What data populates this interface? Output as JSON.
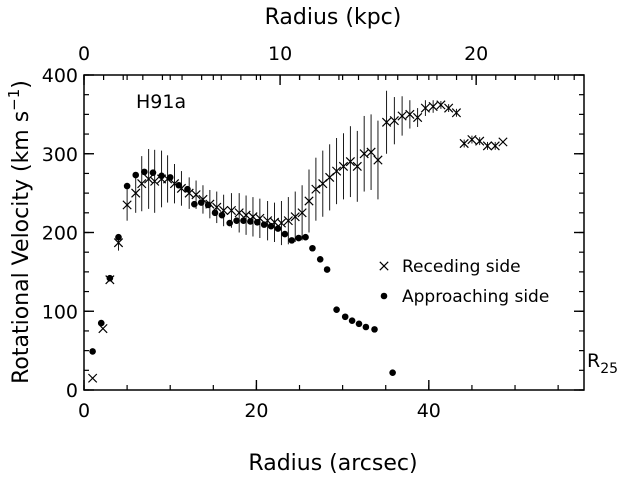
{
  "chart_data": {
    "type": "scatter",
    "xlabel": "Radius (arcsec)",
    "x2label": "Radius (kpc)",
    "ylabel": "Rotational Velocity (km s",
    "ylabel_sup": "−1",
    "ylabel_close": ")",
    "annotation": "H91a",
    "r25_label": "R",
    "r25_sub": "25",
    "xlim": [
      0,
      58
    ],
    "ylim": [
      0,
      400
    ],
    "x2lim": [
      0,
      25.5
    ],
    "x_ticks": [
      0,
      20,
      40
    ],
    "x_tick_labels": [
      "0",
      "20",
      "40"
    ],
    "x2_ticks": [
      0,
      10,
      20
    ],
    "x2_tick_labels": [
      "0",
      "10",
      "20"
    ],
    "y_ticks": [
      0,
      100,
      200,
      300,
      400
    ],
    "y_tick_labels": [
      "0",
      "100",
      "200",
      "300",
      "400"
    ],
    "x_minor_step": 5,
    "y_minor_step": 25,
    "x2_minor_step": 1,
    "series": [
      {
        "name": "Receding side",
        "marker": "x",
        "points": [
          [
            1,
            15,
            0
          ],
          [
            2.2,
            78,
            0
          ],
          [
            3,
            140,
            0
          ],
          [
            4,
            187,
            10
          ],
          [
            5,
            235,
            20
          ],
          [
            6,
            250,
            25
          ],
          [
            6.7,
            262,
            35
          ],
          [
            7.5,
            268,
            38
          ],
          [
            8.2,
            265,
            40
          ],
          [
            9,
            268,
            36
          ],
          [
            9.7,
            268,
            30
          ],
          [
            10.5,
            262,
            25
          ],
          [
            11.3,
            256,
            22
          ],
          [
            12.2,
            250,
            20
          ],
          [
            13,
            248,
            18
          ],
          [
            13.8,
            242,
            18
          ],
          [
            14.6,
            236,
            18
          ],
          [
            15.4,
            232,
            20
          ],
          [
            16.2,
            228,
            20
          ],
          [
            17.1,
            228,
            22
          ],
          [
            18,
            225,
            25
          ],
          [
            18.8,
            222,
            25
          ],
          [
            19.6,
            220,
            25
          ],
          [
            20.4,
            218,
            25
          ],
          [
            21.3,
            215,
            25
          ],
          [
            22.1,
            213,
            25
          ],
          [
            22.9,
            212,
            28
          ],
          [
            23.7,
            215,
            30
          ],
          [
            24.5,
            220,
            32
          ],
          [
            25.3,
            225,
            35
          ],
          [
            26.1,
            240,
            40
          ],
          [
            26.9,
            255,
            40
          ],
          [
            27.7,
            262,
            42
          ],
          [
            28.5,
            270,
            42
          ],
          [
            29.3,
            278,
            42
          ],
          [
            30.1,
            284,
            42
          ],
          [
            30.9,
            290,
            45
          ],
          [
            31.7,
            284,
            45
          ],
          [
            32.5,
            300,
            48
          ],
          [
            33.3,
            302,
            48
          ],
          [
            34.1,
            292,
            50
          ],
          [
            35.1,
            340,
            40
          ],
          [
            36,
            342,
            30
          ],
          [
            36.9,
            348,
            25
          ],
          [
            37.8,
            350,
            18
          ],
          [
            38.7,
            346,
            12
          ],
          [
            39.6,
            358,
            10
          ],
          [
            40.5,
            360,
            8
          ],
          [
            41.4,
            362,
            5
          ],
          [
            42.3,
            358,
            5
          ],
          [
            43.2,
            352,
            5
          ],
          [
            44.1,
            313,
            5
          ],
          [
            45,
            318,
            5
          ],
          [
            45.9,
            316,
            5
          ],
          [
            46.8,
            310,
            5
          ],
          [
            47.7,
            310,
            5
          ],
          [
            48.6,
            315,
            0
          ]
        ]
      },
      {
        "name": "Approaching side",
        "marker": "dot",
        "points": [
          [
            1,
            49
          ],
          [
            2,
            85
          ],
          [
            3,
            142
          ],
          [
            4,
            194
          ],
          [
            5,
            259
          ],
          [
            6,
            273
          ],
          [
            7,
            277
          ],
          [
            8,
            276
          ],
          [
            9,
            272
          ],
          [
            10,
            270
          ],
          [
            11,
            260
          ],
          [
            12,
            255
          ],
          [
            12.8,
            236
          ],
          [
            13.6,
            238
          ],
          [
            14.4,
            235
          ],
          [
            15.2,
            225
          ],
          [
            16,
            222
          ],
          [
            16.9,
            212
          ],
          [
            17.7,
            215
          ],
          [
            18.5,
            215
          ],
          [
            19.3,
            214
          ],
          [
            20.1,
            213
          ],
          [
            20.9,
            210
          ],
          [
            21.7,
            208
          ],
          [
            22.5,
            205
          ],
          [
            23.3,
            198
          ],
          [
            24.1,
            190
          ],
          [
            24.9,
            193
          ],
          [
            25.7,
            194
          ],
          [
            26.5,
            180
          ],
          [
            27.4,
            166
          ],
          [
            28.2,
            153
          ],
          [
            29.3,
            102
          ],
          [
            30.3,
            93
          ],
          [
            31.1,
            88
          ],
          [
            31.9,
            84
          ],
          [
            32.7,
            80
          ],
          [
            33.7,
            77
          ],
          [
            35.8,
            22
          ]
        ]
      }
    ]
  }
}
